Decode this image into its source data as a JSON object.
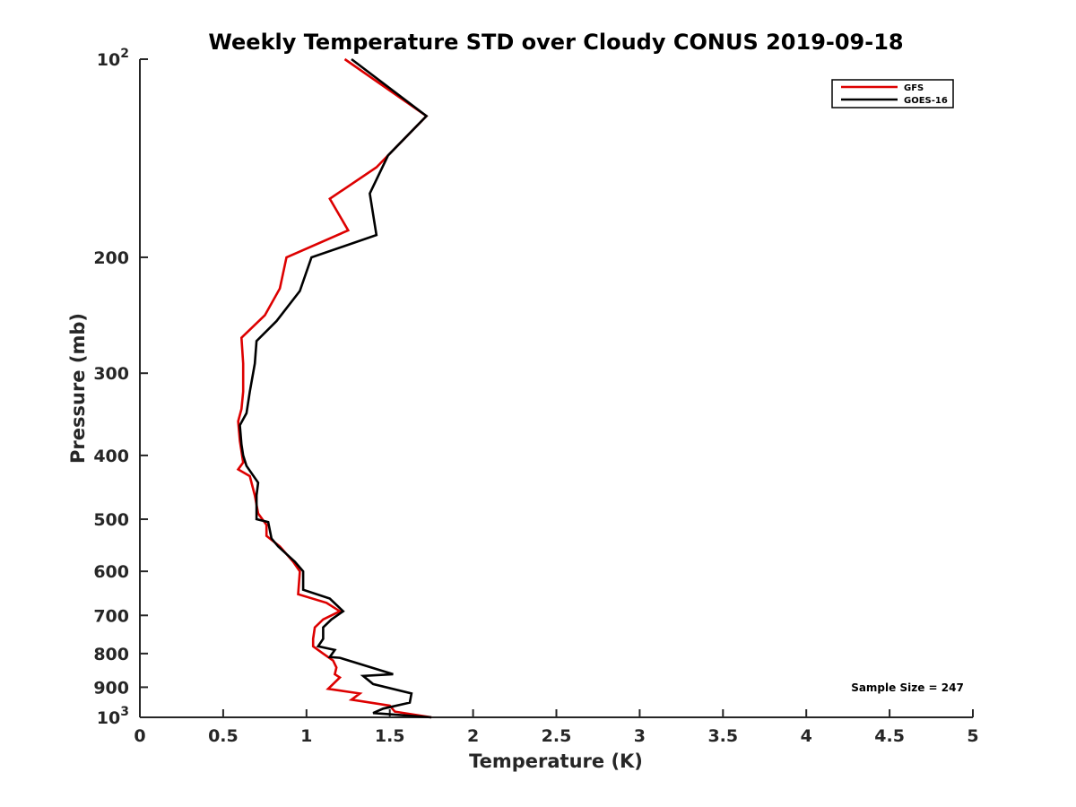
{
  "chart_data": {
    "type": "line",
    "title": "Weekly Temperature STD over Cloudy CONUS 2019-09-18",
    "xlabel": "Temperature (K)",
    "ylabel": "Pressure (mb)",
    "xlim": [
      0,
      5
    ],
    "ylim": [
      100,
      1000
    ],
    "y_scale": "log",
    "y_reversed": true,
    "grid": false,
    "legend_position": "top-right",
    "x_ticks": [
      "0",
      "0.5",
      "1",
      "1.5",
      "2",
      "2.5",
      "3",
      "3.5",
      "4",
      "4.5",
      "5"
    ],
    "y_ticks": [
      {
        "value": 100,
        "base": "10",
        "exp": "2"
      },
      {
        "value": 200,
        "label": "200"
      },
      {
        "value": 300,
        "label": "300"
      },
      {
        "value": 400,
        "label": "400"
      },
      {
        "value": 500,
        "label": "500"
      },
      {
        "value": 600,
        "label": "600"
      },
      {
        "value": 700,
        "label": "700"
      },
      {
        "value": 800,
        "label": "800"
      },
      {
        "value": 900,
        "label": "900"
      },
      {
        "value": 1000,
        "base": "10",
        "exp": "3"
      }
    ],
    "annotation": "Sample Size = 247",
    "series": [
      {
        "name": "GFS",
        "color": "#dd0000",
        "x": [
          1.23,
          1.72,
          1.42,
          1.14,
          1.25,
          0.88,
          0.84,
          0.75,
          0.61,
          0.62,
          0.62,
          0.61,
          0.59,
          0.6,
          0.62,
          0.59,
          0.66,
          0.69,
          0.71,
          0.76,
          0.76,
          0.84,
          0.92,
          0.96,
          0.95,
          1.12,
          1.2,
          1.1,
          1.05,
          1.04,
          1.04,
          1.1,
          1.16,
          1.18,
          1.17,
          1.2,
          1.13,
          1.32,
          1.27,
          1.5,
          1.53,
          1.75
        ],
        "y": [
          100,
          122,
          146,
          163,
          182,
          200,
          223,
          245,
          265,
          290,
          320,
          340,
          355,
          380,
          410,
          420,
          430,
          460,
          490,
          510,
          530,
          550,
          580,
          600,
          650,
          670,
          690,
          710,
          730,
          760,
          780,
          800,
          820,
          840,
          860,
          870,
          905,
          920,
          940,
          960,
          980,
          1000
        ]
      },
      {
        "name": "GOES-16",
        "color": "#000000",
        "x": [
          1.27,
          1.72,
          1.49,
          1.38,
          1.42,
          1.03,
          0.96,
          0.82,
          0.7,
          0.69,
          0.66,
          0.64,
          0.6,
          0.61,
          0.62,
          0.64,
          0.71,
          0.7,
          0.7,
          0.77,
          0.79,
          0.83,
          0.93,
          0.98,
          0.98,
          1.14,
          1.22,
          1.15,
          1.1,
          1.1,
          1.07,
          1.17,
          1.14,
          1.2,
          1.52,
          1.34,
          1.4,
          1.63,
          1.62,
          1.46,
          1.4,
          1.75
        ],
        "y": [
          100,
          122,
          140,
          160,
          185,
          200,
          225,
          250,
          268,
          290,
          320,
          345,
          360,
          385,
          400,
          415,
          440,
          460,
          500,
          505,
          535,
          550,
          580,
          600,
          640,
          660,
          690,
          710,
          730,
          760,
          780,
          790,
          810,
          812,
          860,
          865,
          890,
          920,
          950,
          970,
          985,
          1000
        ]
      }
    ]
  }
}
